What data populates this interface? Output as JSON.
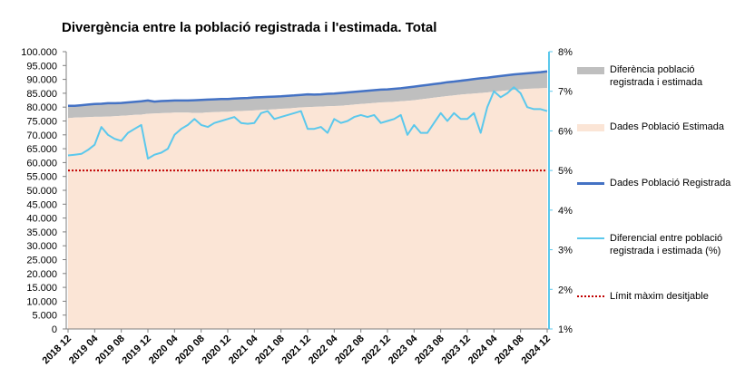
{
  "chart_data": {
    "type": "area",
    "title": "Divergència entre la població registrada i l'estimada. Total",
    "xlabel": "",
    "ylabel": "",
    "ylim": [
      0,
      100000
    ],
    "y2lim": [
      1,
      8
    ],
    "grid": false,
    "legend_position": "right",
    "y_ticks": [
      "0",
      "5.000",
      "10.000",
      "15.000",
      "20.000",
      "25.000",
      "30.000",
      "35.000",
      "40.000",
      "45.000",
      "50.000",
      "55.000",
      "60.000",
      "65.000",
      "70.000",
      "75.000",
      "80.000",
      "85.000",
      "90.000",
      "95.000",
      "100.000"
    ],
    "y2_ticks": [
      "1%",
      "2%",
      "3%",
      "4%",
      "5%",
      "6%",
      "7%",
      "8%"
    ],
    "x_tick_labels": [
      "2018 12",
      "2019 04",
      "2019 08",
      "2019 12",
      "2020 04",
      "2020 08",
      "2020 12",
      "2021 04",
      "2021 08",
      "2021 12",
      "2022 04",
      "2022 08",
      "2022 12",
      "2023 04",
      "2023 08",
      "2023 12",
      "2024 04",
      "2024 08",
      "2024 12"
    ],
    "x": [
      "2018 12",
      "2019 01",
      "2019 02",
      "2019 03",
      "2019 04",
      "2019 05",
      "2019 06",
      "2019 07",
      "2019 08",
      "2019 09",
      "2019 10",
      "2019 11",
      "2019 12",
      "2020 01",
      "2020 02",
      "2020 03",
      "2020 04",
      "2020 05",
      "2020 06",
      "2020 07",
      "2020 08",
      "2020 09",
      "2020 10",
      "2020 11",
      "2020 12",
      "2021 01",
      "2021 02",
      "2021 03",
      "2021 04",
      "2021 05",
      "2021 06",
      "2021 07",
      "2021 08",
      "2021 09",
      "2021 10",
      "2021 11",
      "2021 12",
      "2022 01",
      "2022 02",
      "2022 03",
      "2022 04",
      "2022 05",
      "2022 06",
      "2022 07",
      "2022 08",
      "2022 09",
      "2022 10",
      "2022 11",
      "2022 12",
      "2023 01",
      "2023 02",
      "2023 03",
      "2023 04",
      "2023 05",
      "2023 06",
      "2023 07",
      "2023 08",
      "2023 09",
      "2023 10",
      "2023 11",
      "2023 12",
      "2024 01",
      "2024 02",
      "2024 03",
      "2024 04",
      "2024 05",
      "2024 06",
      "2024 07",
      "2024 08",
      "2024 09",
      "2024 10",
      "2024 11",
      "2024 12"
    ],
    "series": [
      {
        "name": "Diferència població registrada i estimada",
        "kind": "area-band",
        "color": "#bfbfbf",
        "note": "band between Dades Població Estimada and Dades Població Registrada"
      },
      {
        "name": "Dades Població Estimada",
        "kind": "area",
        "color": "#fbe5d6",
        "values": [
          76000,
          76200,
          76300,
          76400,
          76500,
          76500,
          76600,
          76700,
          76900,
          77000,
          77200,
          77300,
          77600,
          77700,
          77800,
          77900,
          78000,
          78000,
          78000,
          77900,
          77900,
          78100,
          78200,
          78300,
          78300,
          78500,
          78600,
          78700,
          78800,
          79000,
          79100,
          79200,
          79400,
          79500,
          79700,
          79900,
          80000,
          80100,
          80200,
          80300,
          80400,
          80500,
          80700,
          80900,
          81100,
          81300,
          81500,
          81700,
          81800,
          81900,
          82100,
          82300,
          82500,
          82800,
          83100,
          83400,
          83700,
          84000,
          84200,
          84500,
          84700,
          84900,
          85100,
          85300,
          85600,
          85800,
          86000,
          86200,
          86400,
          86600,
          86700,
          86800,
          86900
        ]
      },
      {
        "name": "Dades Població Registrada",
        "kind": "line",
        "axis": "left",
        "color": "#4472c4",
        "values": [
          80500,
          80500,
          80700,
          80900,
          81100,
          81200,
          81400,
          81400,
          81500,
          81700,
          81900,
          82100,
          82400,
          82000,
          82200,
          82300,
          82400,
          82400,
          82400,
          82500,
          82600,
          82700,
          82800,
          82900,
          82900,
          83100,
          83200,
          83300,
          83500,
          83600,
          83700,
          83800,
          83900,
          84100,
          84200,
          84400,
          84600,
          84500,
          84600,
          84800,
          84900,
          85100,
          85300,
          85500,
          85700,
          85900,
          86100,
          86300,
          86400,
          86600,
          86800,
          87100,
          87400,
          87700,
          88000,
          88300,
          88600,
          89000,
          89200,
          89500,
          89800,
          90100,
          90400,
          90600,
          90900,
          91200,
          91500,
          91800,
          92000,
          92200,
          92400,
          92600,
          92900
        ]
      },
      {
        "name": "Diferencial entre població registrada i estimada (%)",
        "kind": "line",
        "axis": "right",
        "color": "#5bc8ec",
        "values": [
          5.38,
          5.4,
          5.42,
          5.52,
          5.65,
          6.1,
          5.9,
          5.8,
          5.75,
          5.95,
          6.05,
          6.15,
          5.3,
          5.4,
          5.45,
          5.55,
          5.9,
          6.05,
          6.15,
          6.3,
          6.15,
          6.1,
          6.2,
          6.25,
          6.3,
          6.35,
          6.2,
          6.18,
          6.2,
          6.45,
          6.5,
          6.3,
          6.35,
          6.4,
          6.45,
          6.5,
          6.05,
          6.05,
          6.1,
          5.95,
          6.3,
          6.2,
          6.25,
          6.35,
          6.4,
          6.35,
          6.4,
          6.2,
          6.25,
          6.3,
          6.4,
          5.9,
          6.15,
          5.95,
          5.95,
          6.2,
          6.45,
          6.25,
          6.45,
          6.3,
          6.3,
          6.45,
          5.95,
          6.6,
          7.0,
          6.85,
          6.95,
          7.1,
          6.95,
          6.6,
          6.55,
          6.55,
          6.5
        ]
      },
      {
        "name": "Límit màxim desitjable",
        "kind": "constant-line",
        "axis": "right",
        "color": "#c00000",
        "value": 5
      }
    ]
  }
}
